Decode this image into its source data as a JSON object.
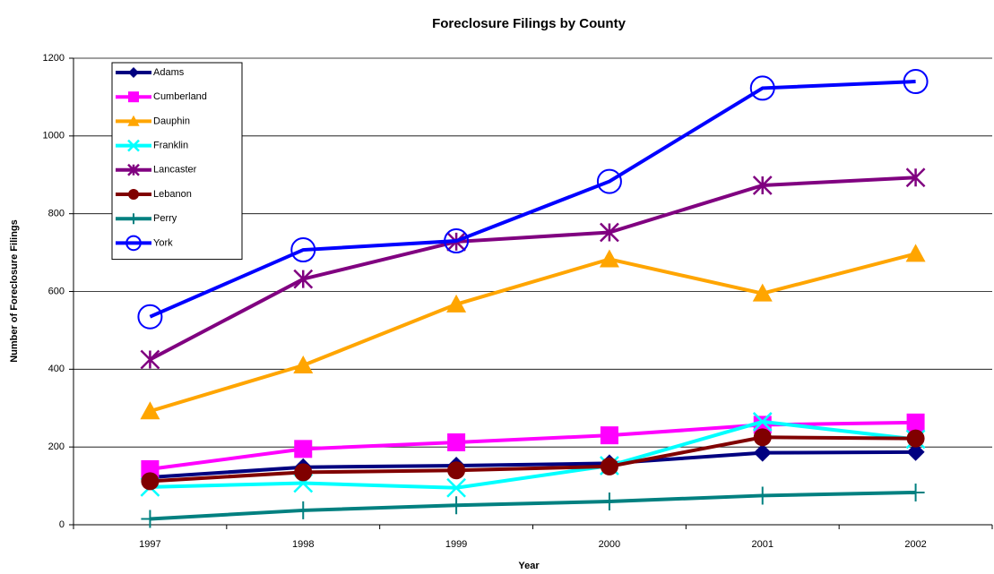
{
  "chart_data": {
    "type": "line",
    "title": "Foreclosure Filings by County",
    "x_label": "Year",
    "y_label": "Number of Foreclosure Filings",
    "categories": [
      "1997",
      "1998",
      "1999",
      "2000",
      "2001",
      "2002"
    ],
    "ylim": [
      0,
      1200
    ],
    "yticks": [
      0,
      200,
      400,
      600,
      800,
      1000,
      1200
    ],
    "grid": true,
    "legend": "upper left",
    "series": [
      {
        "name": "Adams",
        "color": "#000080",
        "marker": "diamond",
        "values": [
          122,
          148,
          152,
          158,
          185,
          187
        ]
      },
      {
        "name": "Cumberland",
        "color": "#ff00ff",
        "marker": "square",
        "values": [
          143,
          195,
          212,
          230,
          257,
          263
        ]
      },
      {
        "name": "Dauphin",
        "color": "#ffa500",
        "marker": "triangle",
        "values": [
          292,
          410,
          567,
          683,
          595,
          697
        ]
      },
      {
        "name": "Franklin",
        "color": "#00ffff",
        "marker": "x",
        "values": [
          97,
          107,
          95,
          152,
          265,
          220
        ]
      },
      {
        "name": "Lancaster",
        "color": "#800080",
        "marker": "asterisk",
        "values": [
          425,
          632,
          728,
          752,
          873,
          893
        ]
      },
      {
        "name": "Lebanon",
        "color": "#800000",
        "marker": "circle",
        "values": [
          112,
          135,
          140,
          150,
          225,
          222
        ]
      },
      {
        "name": "Perry",
        "color": "#008080",
        "marker": "plus",
        "values": [
          15,
          37,
          50,
          60,
          75,
          83
        ]
      },
      {
        "name": "York",
        "color": "#0000ff",
        "marker": "open-circle",
        "values": [
          535,
          707,
          730,
          883,
          1123,
          1140
        ]
      }
    ]
  }
}
